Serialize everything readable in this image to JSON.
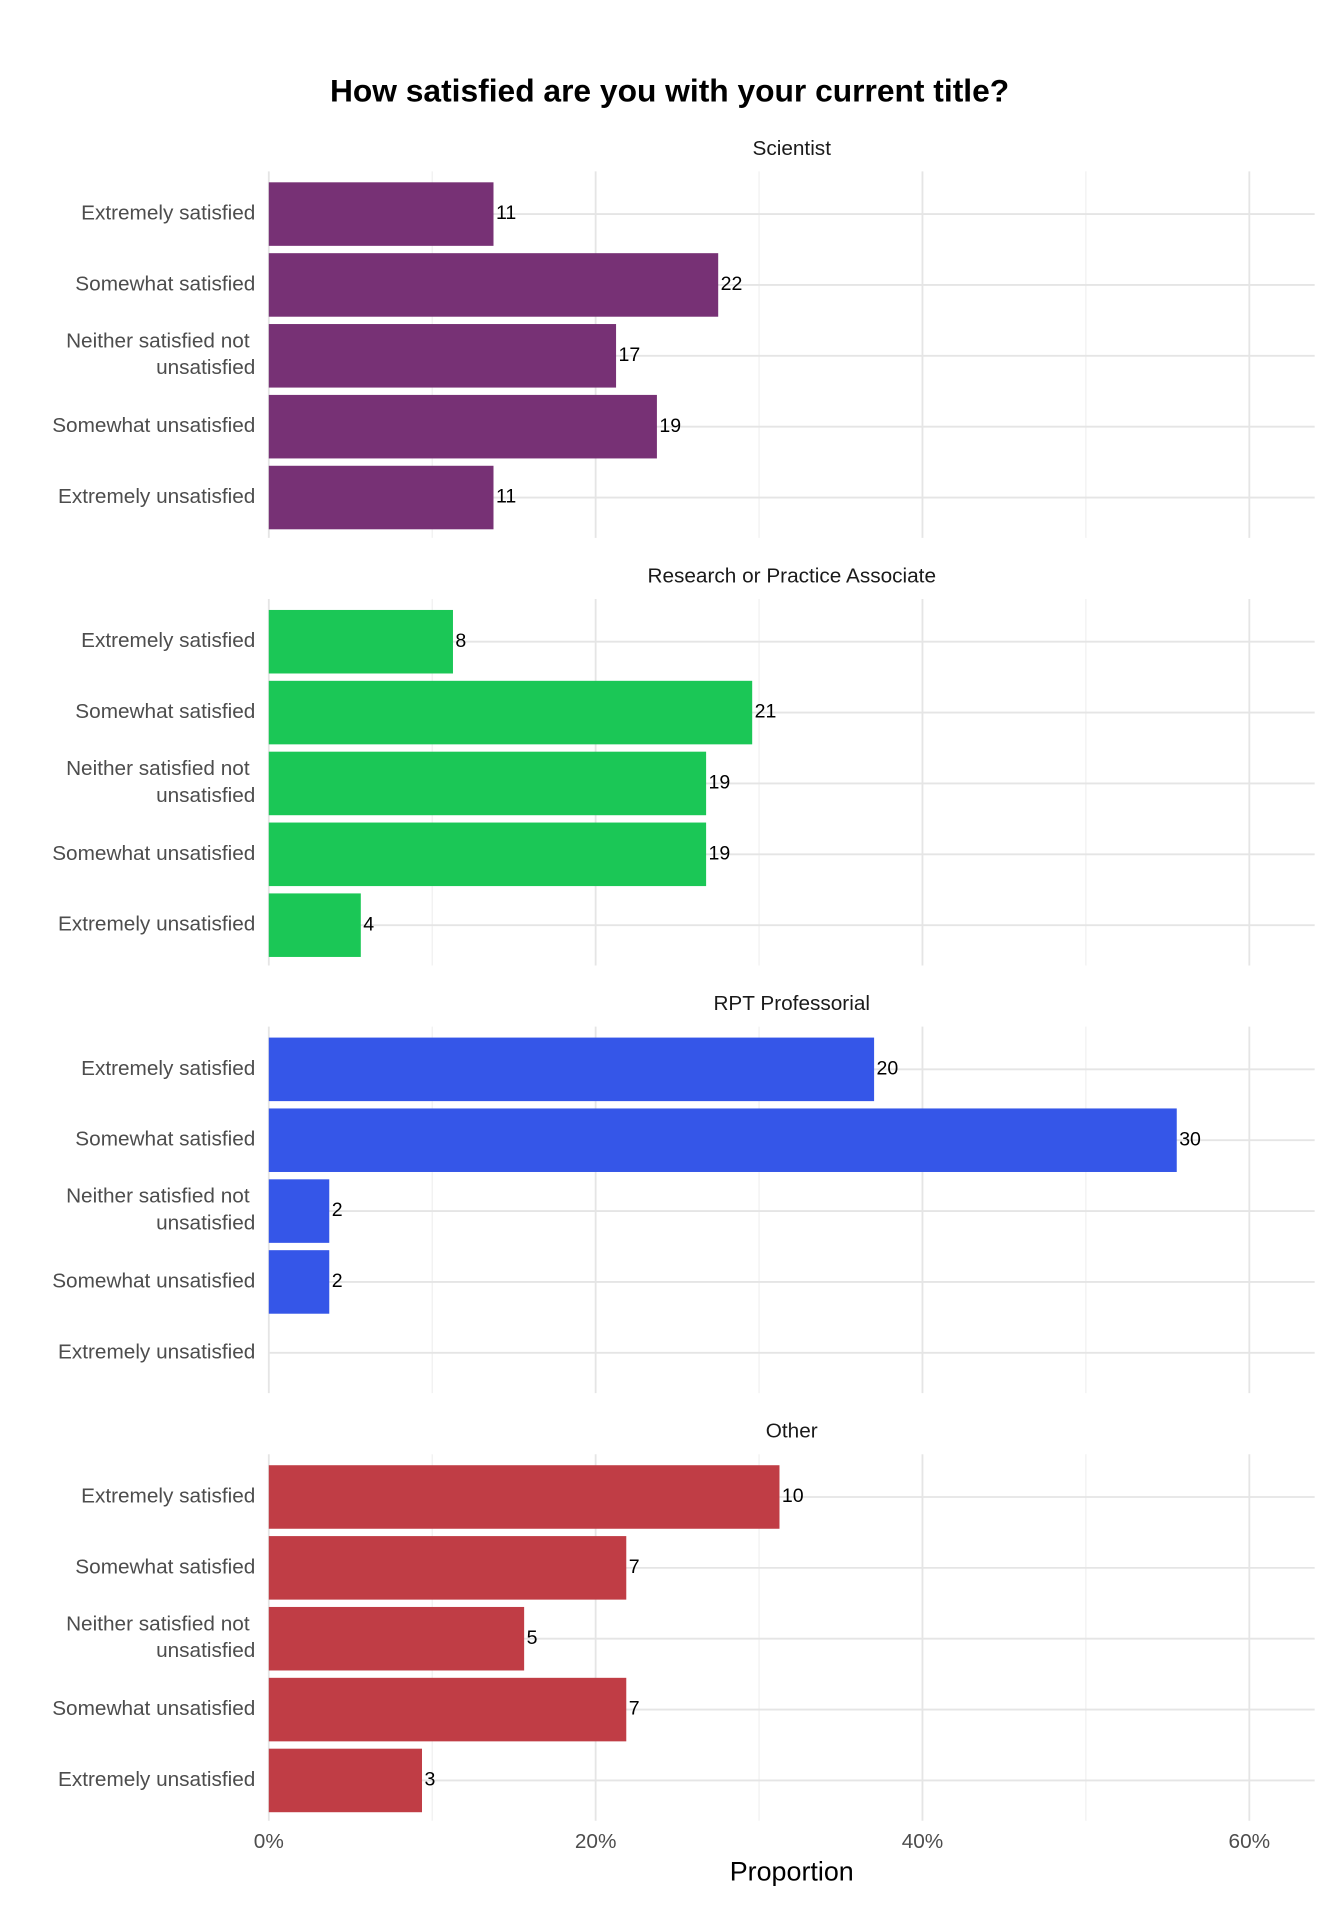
{
  "title": "How satisfied are you with your current title?",
  "x_label": "Proportion",
  "chart_data": [
    {
      "type": "bar",
      "title": "Scientist",
      "color": "#773175",
      "categories": [
        "Extremely satisfied",
        "Somewhat satisfied",
        "Neither satisfied not unsatisfied",
        "Somewhat unsatisfied",
        "Extremely unsatisfied"
      ],
      "values": [
        13.75,
        27.5,
        21.25,
        23.75,
        13.75
      ],
      "counts": [
        11,
        22,
        17,
        19,
        11
      ],
      "xlim": [
        0,
        64
      ],
      "xticks": [
        {
          "value": 0,
          "label": "0%"
        },
        {
          "value": 20,
          "label": "20%"
        },
        {
          "value": 40,
          "label": "40%"
        },
        {
          "value": 60,
          "label": "60%"
        }
      ],
      "minor_xticks": [
        10,
        30,
        50
      ],
      "grid": true
    },
    {
      "type": "bar",
      "title": "Research or Practice Associate",
      "color": "#1bc756",
      "categories": [
        "Extremely satisfied",
        "Somewhat satisfied",
        "Neither satisfied not unsatisfied",
        "Somewhat unsatisfied",
        "Extremely unsatisfied"
      ],
      "values": [
        11.27,
        29.58,
        26.76,
        26.76,
        5.63
      ],
      "counts": [
        8,
        21,
        19,
        19,
        4
      ],
      "xlim": [
        0,
        64
      ],
      "xticks": [
        {
          "value": 0,
          "label": "0%"
        },
        {
          "value": 20,
          "label": "20%"
        },
        {
          "value": 40,
          "label": "40%"
        },
        {
          "value": 60,
          "label": "60%"
        }
      ],
      "minor_xticks": [
        10,
        30,
        50
      ],
      "grid": true
    },
    {
      "type": "bar",
      "title": "RPT Professorial",
      "color": "#3556e8",
      "categories": [
        "Extremely satisfied",
        "Somewhat satisfied",
        "Neither satisfied not unsatisfied",
        "Somewhat unsatisfied",
        "Extremely unsatisfied"
      ],
      "values": [
        37.04,
        55.56,
        3.7,
        3.7,
        null
      ],
      "counts": [
        20,
        30,
        2,
        2,
        null
      ],
      "xlim": [
        0,
        64
      ],
      "xticks": [
        {
          "value": 0,
          "label": "0%"
        },
        {
          "value": 20,
          "label": "20%"
        },
        {
          "value": 40,
          "label": "40%"
        },
        {
          "value": 60,
          "label": "60%"
        }
      ],
      "minor_xticks": [
        10,
        30,
        50
      ],
      "grid": true
    },
    {
      "type": "bar",
      "title": "Other",
      "color": "#c03d45",
      "categories": [
        "Extremely satisfied",
        "Somewhat satisfied",
        "Neither satisfied not unsatisfied",
        "Somewhat unsatisfied",
        "Extremely unsatisfied"
      ],
      "values": [
        31.25,
        21.875,
        15.625,
        21.875,
        9.375
      ],
      "counts": [
        10,
        7,
        5,
        7,
        3
      ],
      "xlim": [
        0,
        64
      ],
      "xticks": [
        {
          "value": 0,
          "label": "0%"
        },
        {
          "value": 20,
          "label": "20%"
        },
        {
          "value": 40,
          "label": "40%"
        },
        {
          "value": 60,
          "label": "60%"
        }
      ],
      "minor_xticks": [
        10,
        30,
        50
      ],
      "grid": true
    }
  ]
}
